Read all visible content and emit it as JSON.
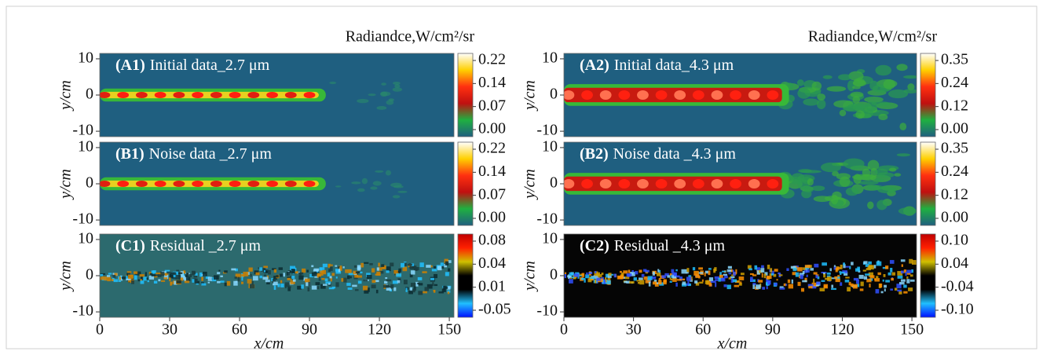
{
  "chart_data": [
    {
      "type": "heatmap",
      "panel": "(A1)",
      "title": "Initial data_2.7 μm",
      "colorbar_title": "Radiandce,W/cm²/sr",
      "ylabel": "y/cm",
      "xlim": [
        0,
        152
      ],
      "ylim": [
        -11.5,
        11.5
      ],
      "yticks": [
        -10,
        0,
        10
      ],
      "color": "#1f5f80",
      "colorbar": {
        "colors": [
          "#1f5f80",
          "#1fb040",
          "#c01010",
          "#ff3010",
          "#ffd000",
          "#ffffff"
        ],
        "ticks": [
          {
            "value": 0,
            "label": "0.00"
          },
          0.07,
          0.14,
          0.22
        ]
      }
    },
    {
      "type": "heatmap",
      "panel": "(B1)",
      "title": "Noise data _2.7 μm",
      "ylabel": "y/cm",
      "xlim": [
        0,
        152
      ],
      "ylim": [
        -11.5,
        11.5
      ],
      "yticks": [
        -10,
        0,
        10
      ],
      "color": "#1f5f80",
      "colorbar": {
        "colors": [
          "#1f5f80",
          "#1fb040",
          "#c01010",
          "#ff3010",
          "#ffd000",
          "#ffffff"
        ],
        "ticks": [
          {
            "value": 0,
            "label": "0.00"
          },
          0.07,
          0.14,
          0.22
        ]
      }
    },
    {
      "type": "heatmap",
      "panel": "(C1)",
      "title": "Residual _2.7 μm",
      "xlabel": "x/cm",
      "ylabel": "y/cm",
      "xlim": [
        0,
        152
      ],
      "ylim": [
        -11.5,
        11.5
      ],
      "xticks": [
        0,
        30,
        60,
        90,
        120,
        150
      ],
      "yticks": [
        -10,
        0,
        10
      ],
      "color": "#2c6a6e",
      "colorbar": {
        "colors": [
          "#0010ff",
          "#20c0ff",
          "#000000",
          "#000000",
          "#d0c000",
          "#ff2000",
          "#c00000"
        ],
        "ticks": [
          -0.05,
          0.01,
          0.04,
          0.08
        ]
      }
    },
    {
      "type": "heatmap",
      "panel": "(A2)",
      "title": "Initial data_4.3 μm",
      "colorbar_title": "Radiandce,W/cm²/sr",
      "ylabel": "y/cm",
      "xlim": [
        0,
        152
      ],
      "ylim": [
        -11.5,
        11.5
      ],
      "yticks": [
        -10,
        0,
        10
      ],
      "color": "#1f5f80",
      "colorbar": {
        "colors": [
          "#1f5f80",
          "#1fb040",
          "#c01010",
          "#ff3010",
          "#ffd000",
          "#ffffff"
        ],
        "ticks": [
          {
            "value": 0,
            "label": "0.00"
          },
          0.12,
          0.24,
          0.35
        ]
      }
    },
    {
      "type": "heatmap",
      "panel": "(B2)",
      "title": "Noise data _4.3 μm",
      "ylabel": "y/cm",
      "xlim": [
        0,
        152
      ],
      "ylim": [
        -11.5,
        11.5
      ],
      "yticks": [
        -10,
        0,
        10
      ],
      "color": "#1f5f80",
      "colorbar": {
        "colors": [
          "#1f5f80",
          "#1fb040",
          "#c01010",
          "#ff3010",
          "#ffd000",
          "#ffffff"
        ],
        "ticks": [
          {
            "value": 0,
            "label": "0.00"
          },
          0.12,
          0.24,
          0.35
        ]
      }
    },
    {
      "type": "heatmap",
      "panel": "(C2)",
      "title": "Residual _4.3 μm",
      "xlabel": "x/cm",
      "ylabel": "y/cm",
      "xlim": [
        0,
        152
      ],
      "ylim": [
        -11.5,
        11.5
      ],
      "xticks": [
        0,
        30,
        60,
        90,
        120,
        150
      ],
      "yticks": [
        -10,
        0,
        10
      ],
      "color": "#050505",
      "colorbar": {
        "colors": [
          "#0010ff",
          "#20c0ff",
          "#000000",
          "#000000",
          "#d0c000",
          "#ff2000",
          "#c00000"
        ],
        "ticks": [
          {
            "value": -0.1,
            "label": "-0.10"
          },
          -0.04,
          0.04,
          {
            "value": 0.1,
            "label": "0.10"
          }
        ]
      }
    }
  ]
}
